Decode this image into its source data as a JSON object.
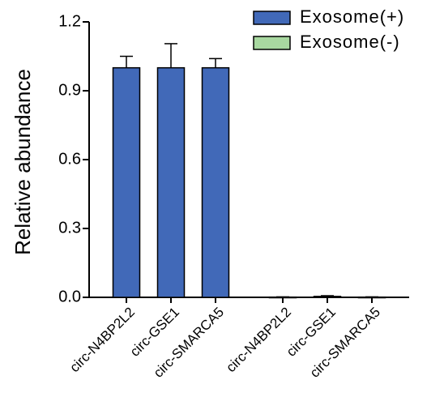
{
  "chart_data": {
    "type": "bar",
    "y_label": "Relative abundance",
    "categories": [
      "circ-N4BP2L2",
      "circ-GSE1",
      "circ-SMARCA5",
      "circ-N4BP2L2",
      "circ-GSE1",
      "circ-SMARCA5"
    ],
    "series": [
      {
        "name": "Exosome(+)",
        "color": "#4169b8",
        "values": [
          1.0,
          1.0,
          1.0,
          null,
          null,
          null
        ],
        "errors": [
          0.05,
          0.105,
          0.04,
          null,
          null,
          null
        ]
      },
      {
        "name": "Exosome(-)",
        "color": "#a8d8a0",
        "values": [
          null,
          null,
          null,
          0.001,
          0.004,
          0.001
        ],
        "errors": [
          null,
          null,
          null,
          0.001,
          0.003,
          0.001
        ]
      }
    ],
    "ylim": [
      0,
      1.2
    ],
    "yticks": [
      {
        "value": 0,
        "label": "0.0"
      },
      0.3,
      0.6,
      0.9,
      1.2
    ],
    "legend": "top-right"
  }
}
